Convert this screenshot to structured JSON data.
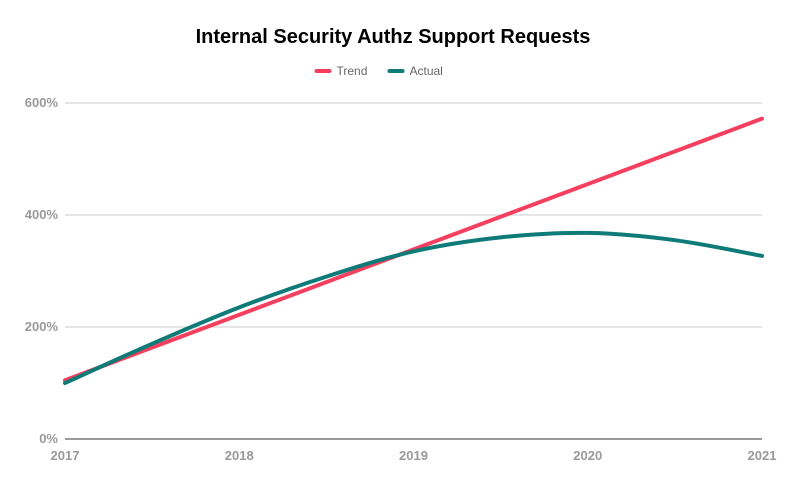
{
  "chart_data": {
    "type": "line",
    "title": "Internal Security Authz Support Requests",
    "xlabel": "",
    "ylabel": "",
    "x_ticks": [
      "2017",
      "2018",
      "2019",
      "2020",
      "2021"
    ],
    "y_ticks": [
      "0%",
      "200%",
      "400%",
      "600%"
    ],
    "ylim": [
      0,
      600
    ],
    "grid": true,
    "legend_position": "top-center",
    "series": [
      {
        "name": "Trend",
        "color": "#f43f5e",
        "x": [
          2017,
          2021
        ],
        "y": [
          105,
          572
        ]
      },
      {
        "name": "Actual",
        "color": "#0f7b78",
        "x": [
          2017,
          2017.5,
          2018,
          2018.5,
          2019,
          2019.5,
          2020,
          2020.5,
          2021
        ],
        "y": [
          100,
          170,
          235,
          290,
          335,
          360,
          368,
          355,
          327
        ]
      }
    ]
  }
}
